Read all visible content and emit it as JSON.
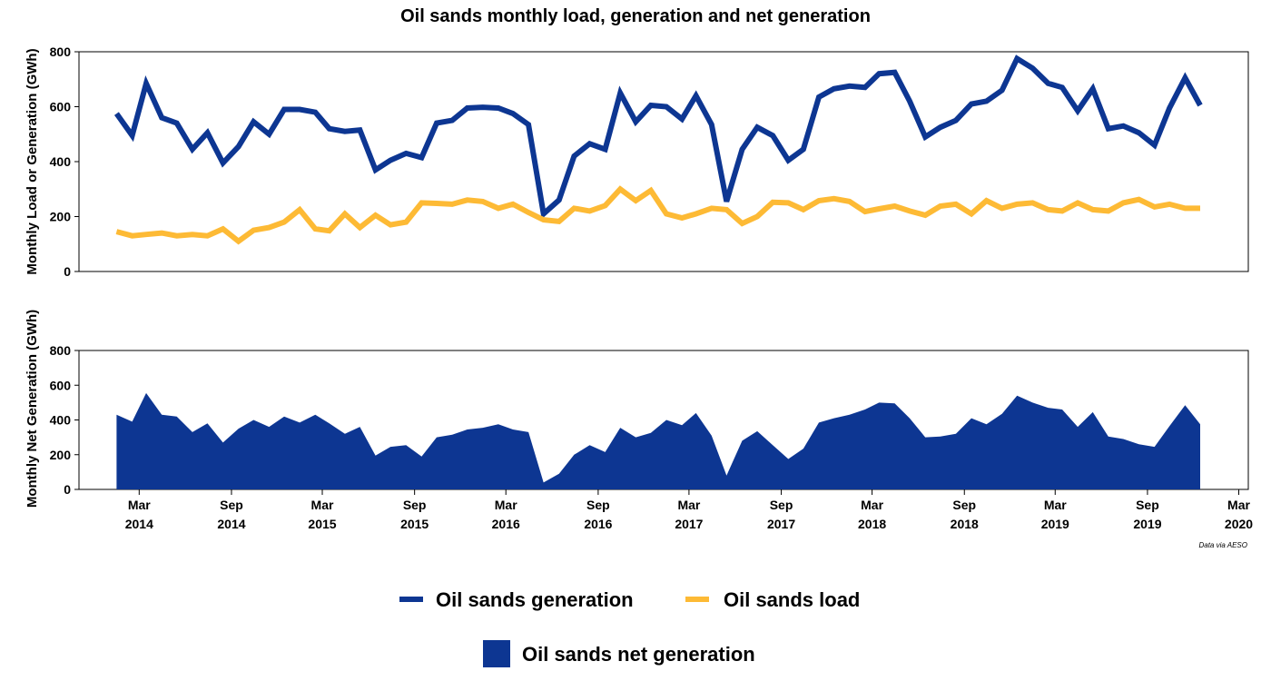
{
  "title": "Oil sands monthly load, generation and net generation",
  "source_note": "Data via AESO",
  "colors": {
    "generation": "#0D3692",
    "load": "#FDBA35",
    "net": "#0D3692"
  },
  "x_ticks": [
    {
      "month": "Mar",
      "year": "2014",
      "date": "2014-03-01"
    },
    {
      "month": "Sep",
      "year": "2014",
      "date": "2014-09-01"
    },
    {
      "month": "Mar",
      "year": "2015",
      "date": "2015-03-01"
    },
    {
      "month": "Sep",
      "year": "2015",
      "date": "2015-09-01"
    },
    {
      "month": "Mar",
      "year": "2016",
      "date": "2016-03-01"
    },
    {
      "month": "Sep",
      "year": "2016",
      "date": "2016-09-01"
    },
    {
      "month": "Mar",
      "year": "2017",
      "date": "2017-03-01"
    },
    {
      "month": "Sep",
      "year": "2017",
      "date": "2017-09-01"
    },
    {
      "month": "Mar",
      "year": "2018",
      "date": "2018-03-01"
    },
    {
      "month": "Sep",
      "year": "2018",
      "date": "2018-09-01"
    },
    {
      "month": "Mar",
      "year": "2019",
      "date": "2019-03-01"
    },
    {
      "month": "Sep",
      "year": "2019",
      "date": "2019-09-01"
    },
    {
      "month": "Mar",
      "year": "2020",
      "date": "2020-03-01"
    }
  ],
  "legend": {
    "generation": "Oil sands generation",
    "load": "Oil sands load",
    "net": "Oil sands net generation"
  },
  "chart_data": [
    {
      "type": "line",
      "ylabel": "Monthly Load or Generation (GWh)",
      "ylim": [
        0,
        800
      ],
      "yticks": [
        0,
        200,
        400,
        600,
        800
      ],
      "xlim": [
        "2013-11-01",
        "2020-03-20"
      ],
      "x": [
        "2014-01",
        "2014-02",
        "2014-03",
        "2014-04",
        "2014-05",
        "2014-06",
        "2014-07",
        "2014-08",
        "2014-09",
        "2014-10",
        "2014-11",
        "2014-12",
        "2015-01",
        "2015-02",
        "2015-03",
        "2015-04",
        "2015-05",
        "2015-06",
        "2015-07",
        "2015-08",
        "2015-09",
        "2015-10",
        "2015-11",
        "2015-12",
        "2016-01",
        "2016-02",
        "2016-03",
        "2016-04",
        "2016-05",
        "2016-06",
        "2016-07",
        "2016-08",
        "2016-09",
        "2016-10",
        "2016-11",
        "2016-12",
        "2017-01",
        "2017-02",
        "2017-03",
        "2017-04",
        "2017-05",
        "2017-06",
        "2017-07",
        "2017-08",
        "2017-09",
        "2017-10",
        "2017-11",
        "2017-12",
        "2018-01",
        "2018-02",
        "2018-03",
        "2018-04",
        "2018-05",
        "2018-06",
        "2018-07",
        "2018-08",
        "2018-09",
        "2018-10",
        "2018-11",
        "2018-12",
        "2019-01",
        "2019-02",
        "2019-03",
        "2019-04",
        "2019-05",
        "2019-06",
        "2019-07",
        "2019-08",
        "2019-09",
        "2019-10",
        "2019-11",
        "2019-12"
      ],
      "series": [
        {
          "name": "Oil sands generation",
          "values": [
            575,
            495,
            685,
            560,
            540,
            445,
            505,
            395,
            455,
            545,
            500,
            590,
            590,
            580,
            520,
            510,
            515,
            370,
            405,
            430,
            415,
            540,
            550,
            595,
            598,
            595,
            575,
            535,
            210,
            260,
            420,
            465,
            445,
            650,
            545,
            605,
            600,
            555,
            640,
            535,
            255,
            445,
            525,
            495,
            405,
            445,
            635,
            665,
            675,
            670,
            720,
            725,
            620,
            490,
            525,
            550,
            610,
            620,
            660,
            775,
            740,
            685,
            670,
            585,
            665,
            520,
            530,
            505,
            460,
            595,
            705,
            605
          ]
        },
        {
          "name": "Oil sands load",
          "values": [
            145,
            130,
            135,
            140,
            130,
            135,
            130,
            155,
            110,
            150,
            160,
            180,
            225,
            155,
            148,
            210,
            160,
            205,
            170,
            180,
            250,
            248,
            245,
            260,
            255,
            230,
            245,
            215,
            188,
            182,
            230,
            220,
            240,
            300,
            258,
            295,
            210,
            195,
            210,
            230,
            225,
            175,
            200,
            252,
            250,
            225,
            258,
            265,
            255,
            218,
            228,
            238,
            220,
            205,
            238,
            245,
            210,
            258,
            230,
            245,
            250,
            225,
            220,
            250,
            225,
            220,
            250,
            262,
            235,
            245,
            230,
            230
          ]
        }
      ]
    },
    {
      "type": "area",
      "ylabel": "Monthly Net Generation (GWh)",
      "ylim": [
        0,
        800
      ],
      "yticks": [
        0,
        200,
        400,
        600,
        800
      ],
      "xlim": [
        "2013-11-01",
        "2020-03-20"
      ],
      "x": [
        "2014-01",
        "2014-02",
        "2014-03",
        "2014-04",
        "2014-05",
        "2014-06",
        "2014-07",
        "2014-08",
        "2014-09",
        "2014-10",
        "2014-11",
        "2014-12",
        "2015-01",
        "2015-02",
        "2015-03",
        "2015-04",
        "2015-05",
        "2015-06",
        "2015-07",
        "2015-08",
        "2015-09",
        "2015-10",
        "2015-11",
        "2015-12",
        "2016-01",
        "2016-02",
        "2016-03",
        "2016-04",
        "2016-05",
        "2016-06",
        "2016-07",
        "2016-08",
        "2016-09",
        "2016-10",
        "2016-11",
        "2016-12",
        "2017-01",
        "2017-02",
        "2017-03",
        "2017-04",
        "2017-05",
        "2017-06",
        "2017-07",
        "2017-08",
        "2017-09",
        "2017-10",
        "2017-11",
        "2017-12",
        "2018-01",
        "2018-02",
        "2018-03",
        "2018-04",
        "2018-05",
        "2018-06",
        "2018-07",
        "2018-08",
        "2018-09",
        "2018-10",
        "2018-11",
        "2018-12",
        "2019-01",
        "2019-02",
        "2019-03",
        "2019-04",
        "2019-05",
        "2019-06",
        "2019-07",
        "2019-08",
        "2019-09",
        "2019-10",
        "2019-11",
        "2019-12"
      ],
      "series": [
        {
          "name": "Oil sands net generation",
          "values": [
            430,
            390,
            555,
            430,
            420,
            330,
            380,
            270,
            350,
            400,
            360,
            420,
            385,
            430,
            380,
            320,
            360,
            195,
            245,
            255,
            190,
            300,
            315,
            345,
            355,
            375,
            345,
            330,
            40,
            90,
            200,
            255,
            215,
            355,
            300,
            325,
            400,
            370,
            440,
            310,
            80,
            280,
            335,
            255,
            175,
            235,
            385,
            410,
            430,
            460,
            500,
            495,
            410,
            300,
            305,
            320,
            410,
            375,
            435,
            540,
            500,
            470,
            460,
            360,
            445,
            305,
            290,
            260,
            245,
            365,
            485,
            375
          ]
        }
      ]
    }
  ]
}
